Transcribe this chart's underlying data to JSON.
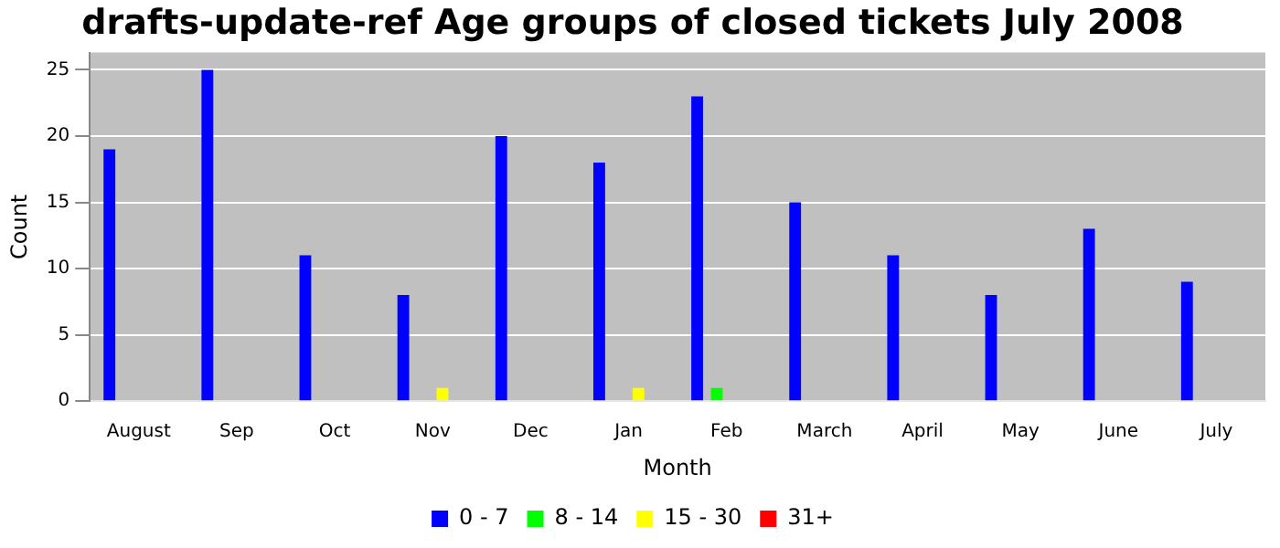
{
  "chart_data": {
    "type": "bar",
    "title": "drafts-update-ref Age groups of closed tickets July 2008",
    "xlabel": "Month",
    "ylabel": "Count",
    "categories": [
      "August",
      "Sep",
      "Oct",
      "Nov",
      "Dec",
      "Jan",
      "Feb",
      "March",
      "April",
      "May",
      "June",
      "July"
    ],
    "series": [
      {
        "name": "0 - 7",
        "color": "#0000ff",
        "values": [
          19,
          25,
          11,
          8,
          20,
          18,
          23,
          15,
          11,
          8,
          13,
          9
        ]
      },
      {
        "name": "8 - 14",
        "color": "#00ff00",
        "values": [
          0,
          0,
          0,
          0,
          0,
          0,
          1,
          0,
          0,
          0,
          0,
          0
        ]
      },
      {
        "name": "15 - 30",
        "color": "#ffff00",
        "values": [
          0,
          0,
          0,
          1,
          0,
          1,
          0,
          0,
          0,
          0,
          0,
          0
        ]
      },
      {
        "name": "31+",
        "color": "#ff0000",
        "values": [
          0,
          0,
          0,
          0,
          0,
          0,
          0,
          0,
          0,
          0,
          0,
          0
        ]
      }
    ],
    "ylim": [
      0,
      26.3
    ],
    "yticks": [
      0,
      5,
      10,
      15,
      20,
      25
    ],
    "grid": "y",
    "legend": "bottom"
  }
}
